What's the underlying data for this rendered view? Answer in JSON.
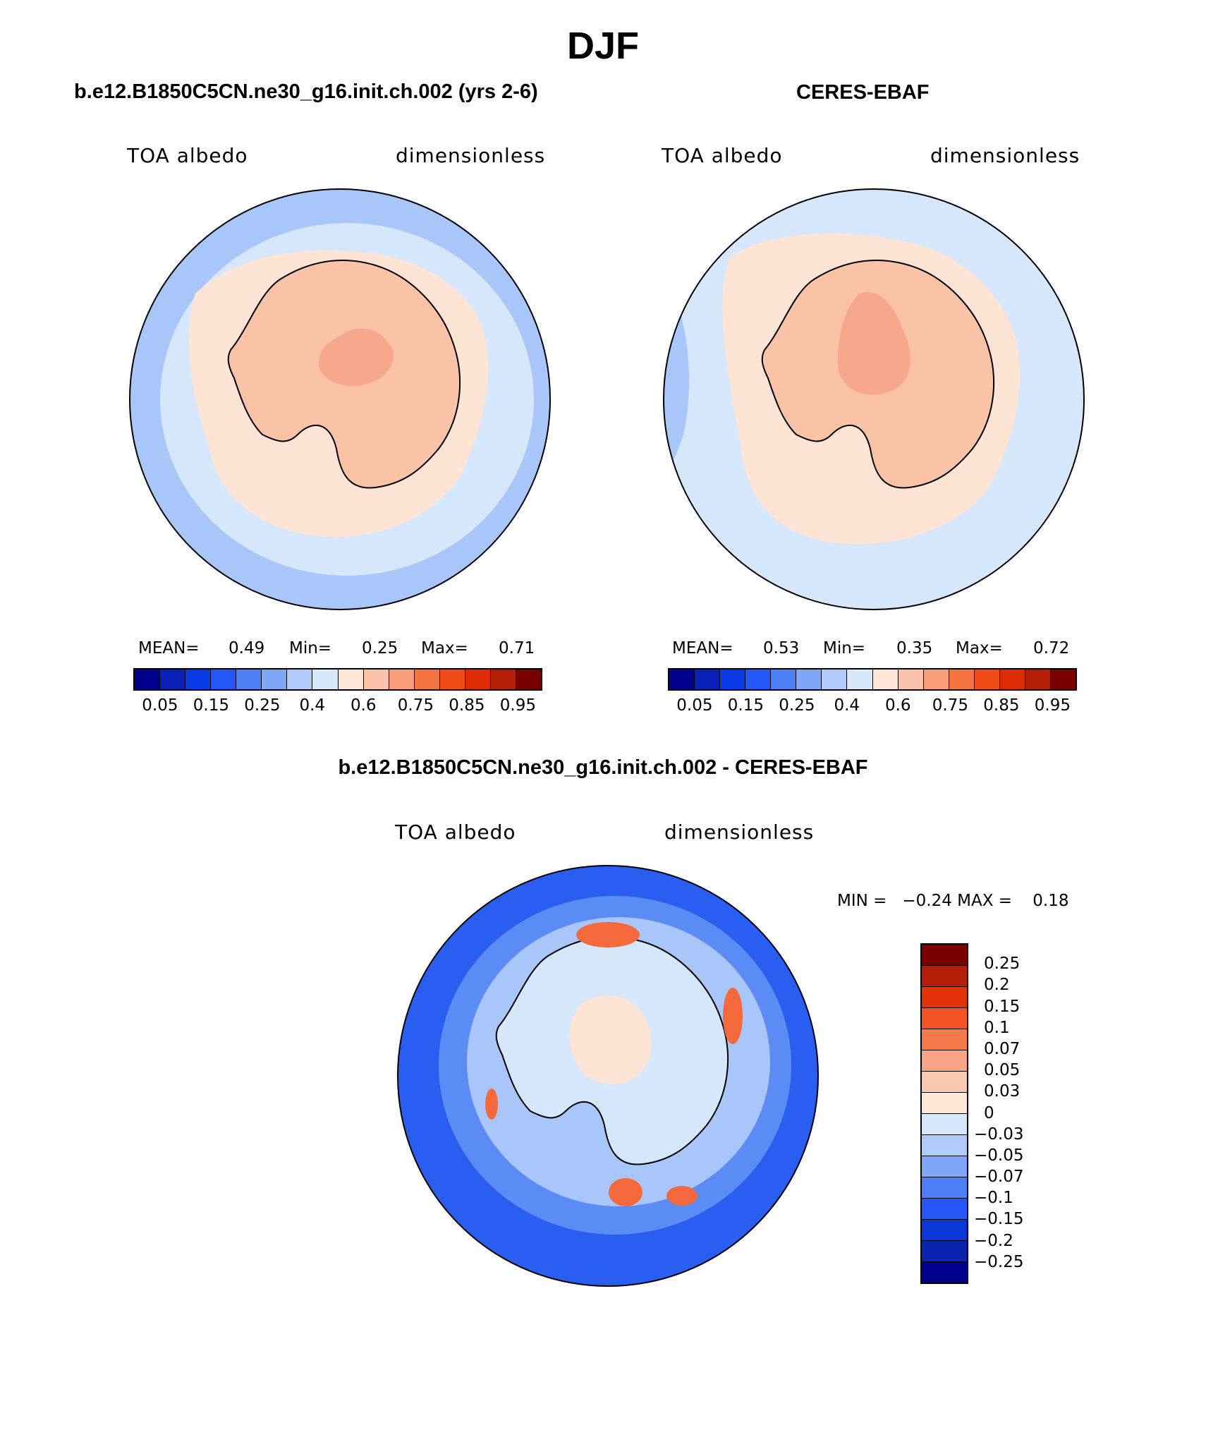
{
  "figure": {
    "title": "DJF"
  },
  "panels": [
    {
      "title": "b.e12.B1850C5CN.ne30_g16.init.ch.002 (yrs 2-6)",
      "left_label": "TOA albedo",
      "right_label": "dimensionless",
      "stats": {
        "mean_label": "MEAN=",
        "mean": "0.49",
        "min_label": "Min=",
        "min": "0.25",
        "max_label": "Max=",
        "max": "0.71"
      },
      "colors": {
        "ocean_far": "#a9c6fa",
        "ocean_near": "#d6e6fb",
        "sea_ice": "#fde4d4",
        "continent": "#fac2a7",
        "interior": "#f8a88a"
      }
    },
    {
      "title": "CERES-EBAF",
      "left_label": "TOA albedo",
      "right_label": "dimensionless",
      "stats": {
        "mean_label": "MEAN=",
        "mean": "0.53",
        "min_label": "Min=",
        "min": "0.35",
        "max_label": "Max=",
        "max": "0.72"
      },
      "colors": {
        "ocean_far": "#d6e6fb",
        "ocean_near": "#d6e6fb",
        "sea_ice": "#fde4d4",
        "continent": "#fac2a7",
        "interior": "#f8a88a"
      }
    },
    {
      "title": "b.e12.B1850C5CN.ne30_g16.init.ch.002 - CERES-EBAF",
      "left_label": "TOA albedo",
      "right_label": "dimensionless",
      "minmax_text": "MIN =   −0.24 MAX =    0.18",
      "colors": {
        "ocean_far": "#2a5ef0",
        "ocean_mid": "#5b8bf5",
        "ocean_near": "#a9c6fa",
        "continent": "#d6e6fb",
        "positive": "#fde4d4",
        "strong_positive": "#f46a3c"
      }
    }
  ],
  "colorbar_abs": {
    "colors": [
      "#00008c",
      "#0a20b8",
      "#0a3ce6",
      "#2457f7",
      "#4c7ff5",
      "#7fa6f8",
      "#b0cbfa",
      "#d8e8fb",
      "#fde6d6",
      "#fac3aa",
      "#f99d7a",
      "#f4733f",
      "#f04a18",
      "#de2d06",
      "#b41e06",
      "#7a0000"
    ],
    "tick_labels": [
      "0.05",
      "0.15",
      "0.25",
      "0.4",
      "0.6",
      "0.75",
      "0.85",
      "0.95"
    ]
  },
  "colorbar_diff": {
    "colors": [
      "#7a0000",
      "#b41e06",
      "#e1320a",
      "#f45226",
      "#f77a4c",
      "#f9a585",
      "#fac7b0",
      "#fde6d6",
      "#d8e8fb",
      "#b0cbfa",
      "#7fa6f8",
      "#4c7ff5",
      "#2457f7",
      "#0a38d8",
      "#0a24b0",
      "#00008c"
    ],
    "tick_labels": [
      "0.25",
      "0.2",
      "0.15",
      "0.1",
      "0.07",
      "0.05",
      "0.03",
      "0",
      "−0.03",
      "−0.05",
      "−0.07",
      "−0.1",
      "−0.15",
      "−0.2",
      "−0.25"
    ]
  }
}
